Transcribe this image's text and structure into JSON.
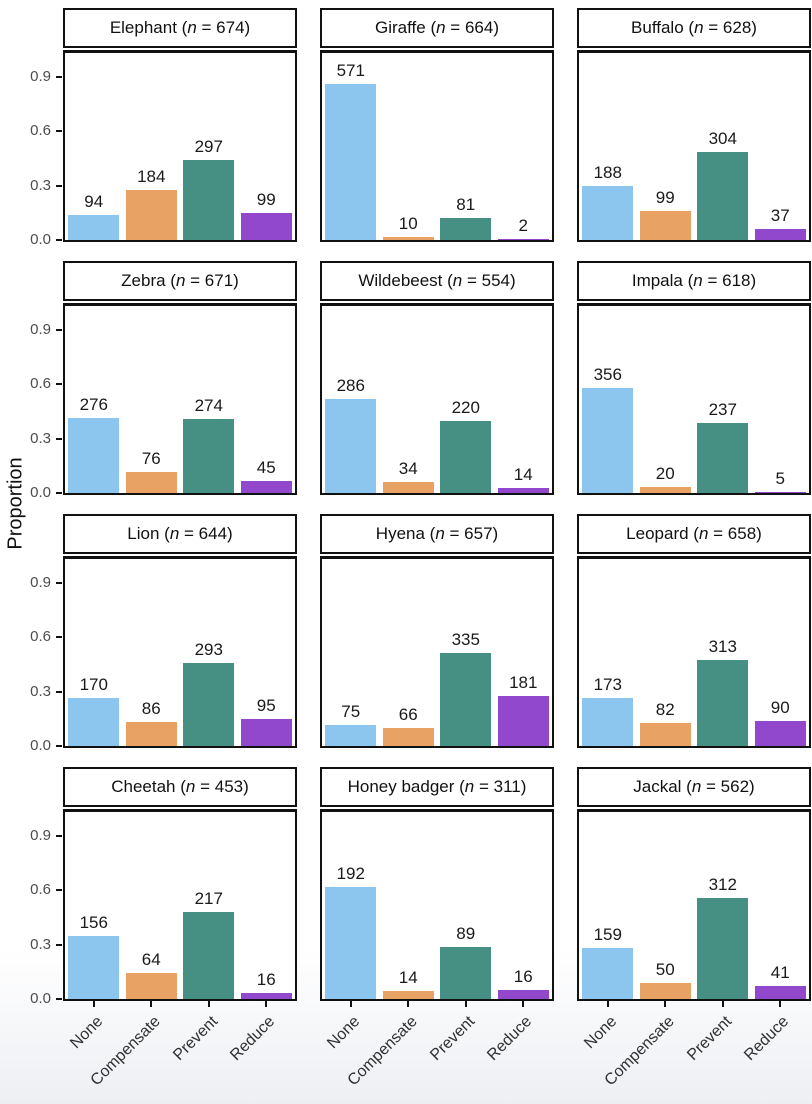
{
  "chart_data": {
    "type": "bar",
    "ylabel": "Proportion",
    "yticks": [
      0.0,
      0.3,
      0.6,
      0.9
    ],
    "ylim": [
      0,
      1.03
    ],
    "grid": "off",
    "legend": "none",
    "facet_grid": {
      "rows": 4,
      "cols": 3
    },
    "categories": [
      "None",
      "Compensate",
      "Prevent",
      "Reduce"
    ],
    "category_colors": [
      "#8CC6EF",
      "#E8A263",
      "#459082",
      "#9148CC"
    ],
    "bar_value": "count / n (proportion)",
    "panels": [
      {
        "name": "Elephant",
        "n": 674,
        "counts": [
          94,
          184,
          297,
          99
        ]
      },
      {
        "name": "Giraffe",
        "n": 664,
        "counts": [
          571,
          10,
          81,
          2
        ]
      },
      {
        "name": "Buffalo",
        "n": 628,
        "counts": [
          188,
          99,
          304,
          37
        ]
      },
      {
        "name": "Zebra",
        "n": 671,
        "counts": [
          276,
          76,
          274,
          45
        ]
      },
      {
        "name": "Wildebeest",
        "n": 554,
        "counts": [
          286,
          34,
          220,
          14
        ]
      },
      {
        "name": "Impala",
        "n": 618,
        "counts": [
          356,
          20,
          237,
          5
        ]
      },
      {
        "name": "Lion",
        "n": 644,
        "counts": [
          170,
          86,
          293,
          95
        ]
      },
      {
        "name": "Hyena",
        "n": 657,
        "counts": [
          75,
          66,
          335,
          181
        ]
      },
      {
        "name": "Leopard",
        "n": 658,
        "counts": [
          173,
          82,
          313,
          90
        ]
      },
      {
        "name": "Cheetah",
        "n": 453,
        "counts": [
          156,
          64,
          217,
          16
        ]
      },
      {
        "name": "Honey badger",
        "n": 311,
        "counts": [
          192,
          14,
          89,
          16
        ]
      },
      {
        "name": "Jackal",
        "n": 562,
        "counts": [
          159,
          50,
          312,
          41
        ]
      }
    ]
  }
}
